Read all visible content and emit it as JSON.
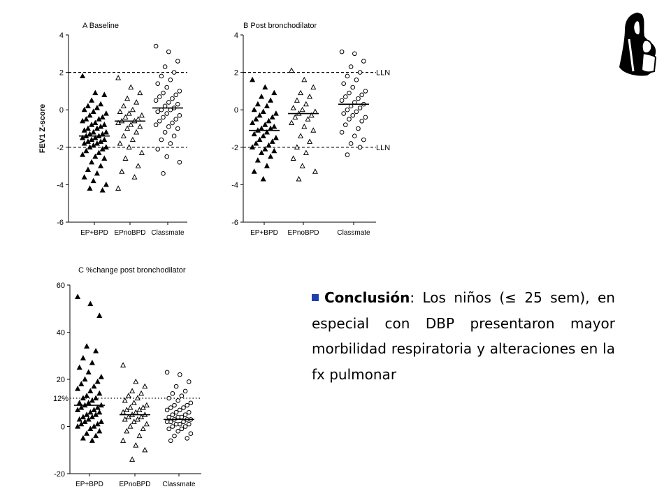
{
  "chart_data": [
    {
      "type": "scatter",
      "title": "A Baseline",
      "ylabel": "FEV1 Z-score",
      "ylim": [
        -6,
        4
      ],
      "yticks": [
        "4",
        "2",
        "0",
        "-2",
        "-4",
        "-6"
      ],
      "yticks_values": [
        4,
        2,
        0,
        -2,
        -4,
        -6
      ],
      "categories": [
        "EP+BPD",
        "EPnoBPD",
        "Classmate"
      ],
      "reference_lines": [
        {
          "y": 2,
          "style": "dashed",
          "label": ""
        },
        {
          "y": -2,
          "style": "dashed",
          "label": ""
        }
      ],
      "series": [
        {
          "category": "EP+BPD",
          "marker": "filled-triangle",
          "mean": -1.4,
          "values": [
            1.8,
            0.9,
            0.8,
            0.5,
            0.3,
            0.2,
            0.1,
            0.0,
            -0.1,
            -0.2,
            -0.3,
            -0.4,
            -0.5,
            -0.5,
            -0.6,
            -0.7,
            -0.8,
            -0.8,
            -0.9,
            -1.0,
            -1.0,
            -1.1,
            -1.2,
            -1.2,
            -1.3,
            -1.3,
            -1.4,
            -1.4,
            -1.5,
            -1.5,
            -1.6,
            -1.6,
            -1.7,
            -1.7,
            -1.8,
            -1.8,
            -1.9,
            -2.0,
            -2.0,
            -2.1,
            -2.2,
            -2.3,
            -2.4,
            -2.5,
            -2.6,
            -2.8,
            -3.0,
            -3.2,
            -3.4,
            -3.6,
            -3.8,
            -4.0,
            -4.2,
            -4.3
          ]
        },
        {
          "category": "EPnoBPD",
          "marker": "open-triangle",
          "mean": -0.6,
          "values": [
            1.7,
            1.2,
            0.9,
            0.6,
            0.4,
            0.2,
            0.0,
            -0.1,
            -0.2,
            -0.3,
            -0.4,
            -0.5,
            -0.6,
            -0.6,
            -0.7,
            -0.8,
            -0.9,
            -1.0,
            -1.2,
            -1.4,
            -1.6,
            -1.8,
            -2.0,
            -2.3,
            -2.6,
            -3.0,
            -3.3,
            -3.6,
            -4.2
          ]
        },
        {
          "category": "Classmate",
          "marker": "open-circle",
          "mean": 0.1,
          "values": [
            3.4,
            3.1,
            2.6,
            2.3,
            2.0,
            1.8,
            1.6,
            1.4,
            1.2,
            1.0,
            0.9,
            0.8,
            0.7,
            0.6,
            0.5,
            0.4,
            0.3,
            0.2,
            0.1,
            0.0,
            0.0,
            -0.1,
            -0.2,
            -0.3,
            -0.4,
            -0.5,
            -0.6,
            -0.7,
            -0.8,
            -0.9,
            -1.0,
            -1.2,
            -1.4,
            -1.6,
            -1.8,
            -2.1,
            -2.5,
            -2.8,
            -3.4
          ]
        }
      ]
    },
    {
      "type": "scatter",
      "title": "B Post bronchodilator",
      "ylabel": "",
      "ylim": [
        -6,
        4
      ],
      "yticks": [
        "4",
        "2",
        "0",
        "-2",
        "-4",
        "-6"
      ],
      "yticks_values": [
        4,
        2,
        0,
        -2,
        -4,
        -6
      ],
      "categories": [
        "EP+BPD",
        "EPnoBPD",
        "Classmate"
      ],
      "reference_lines": [
        {
          "y": 2,
          "style": "dashed",
          "label": "LLN"
        },
        {
          "y": -2,
          "style": "dashed",
          "label": "LLN"
        }
      ],
      "series": [
        {
          "category": "EP+BPD",
          "marker": "filled-triangle",
          "mean": -1.1,
          "values": [
            1.6,
            1.2,
            0.9,
            0.7,
            0.5,
            0.3,
            0.2,
            0.0,
            -0.1,
            -0.2,
            -0.3,
            -0.4,
            -0.5,
            -0.6,
            -0.7,
            -0.8,
            -0.9,
            -1.0,
            -1.0,
            -1.1,
            -1.2,
            -1.3,
            -1.4,
            -1.5,
            -1.6,
            -1.7,
            -1.8,
            -1.9,
            -2.0,
            -2.1,
            -2.2,
            -2.3,
            -2.5,
            -2.7,
            -3.0,
            -3.3,
            -3.7
          ]
        },
        {
          "category": "EPnoBPD",
          "marker": "open-triangle",
          "mean": -0.2,
          "values": [
            2.1,
            1.6,
            1.2,
            0.9,
            0.7,
            0.5,
            0.3,
            0.1,
            0.0,
            -0.1,
            -0.2,
            -0.3,
            -0.4,
            -0.5,
            -0.7,
            -0.9,
            -1.1,
            -1.4,
            -1.7,
            -2.0,
            -2.3,
            -2.6,
            -3.0,
            -3.3,
            -3.7
          ]
        },
        {
          "category": "Classmate",
          "marker": "open-circle",
          "mean": 0.3,
          "values": [
            3.1,
            3.0,
            2.6,
            2.3,
            2.0,
            1.8,
            1.6,
            1.4,
            1.2,
            1.0,
            0.9,
            0.8,
            0.7,
            0.6,
            0.5,
            0.4,
            0.3,
            0.2,
            0.1,
            0.0,
            -0.1,
            -0.2,
            -0.3,
            -0.4,
            -0.5,
            -0.6,
            -0.8,
            -1.0,
            -1.2,
            -1.4,
            -1.6,
            -1.8,
            -2.0,
            -2.4
          ]
        }
      ]
    },
    {
      "type": "scatter",
      "title": "C %change post bronchodilator",
      "ylabel": "",
      "ylim": [
        -20,
        60
      ],
      "yticks": [
        "60",
        "40",
        "20",
        "0",
        "-20"
      ],
      "yticks_values": [
        60,
        40,
        20,
        0,
        -20
      ],
      "categories": [
        "EP+BPD",
        "EPnoBPD",
        "Classmate"
      ],
      "reference_lines": [
        {
          "y": 12,
          "style": "dotted",
          "label": "12%"
        }
      ],
      "series": [
        {
          "category": "EP+BPD",
          "marker": "filled-triangle",
          "mean": 9,
          "values": [
            55,
            52,
            47,
            34,
            32,
            29,
            27,
            25,
            23,
            21,
            20,
            19,
            18,
            17,
            16,
            15,
            14,
            13,
            12,
            12,
            11,
            10,
            10,
            9,
            9,
            8,
            8,
            7,
            7,
            6,
            6,
            5,
            5,
            4,
            4,
            3,
            3,
            2,
            2,
            1,
            1,
            0,
            0,
            -1,
            -2,
            -3,
            -4,
            -5,
            -6
          ]
        },
        {
          "category": "EPnoBPD",
          "marker": "open-triangle",
          "mean": 5,
          "values": [
            26,
            19,
            17,
            15,
            14,
            13,
            12,
            11,
            10,
            9,
            8,
            8,
            7,
            7,
            6,
            6,
            5,
            5,
            4,
            4,
            3,
            3,
            2,
            1,
            0,
            -1,
            -2,
            -4,
            -6,
            -8,
            -10,
            -14
          ]
        },
        {
          "category": "Classmate",
          "marker": "open-circle",
          "mean": 3,
          "values": [
            23,
            22,
            19,
            17,
            15,
            14,
            13,
            12,
            11,
            10,
            9,
            9,
            8,
            8,
            7,
            7,
            6,
            6,
            5,
            5,
            4,
            4,
            4,
            3,
            3,
            3,
            2,
            2,
            2,
            1,
            1,
            1,
            0,
            0,
            -1,
            -1,
            -2,
            -3,
            -4,
            -5,
            -6
          ]
        }
      ]
    }
  ],
  "conclusion": {
    "label": "Conclusión",
    "text": ": Los niños (≤ 25 sem), en especial con DBP presentaron mayor morbilidad respiratoria y alteraciones en la fx pulmonar"
  },
  "logo": {
    "icon": "mother-and-child-logo"
  }
}
